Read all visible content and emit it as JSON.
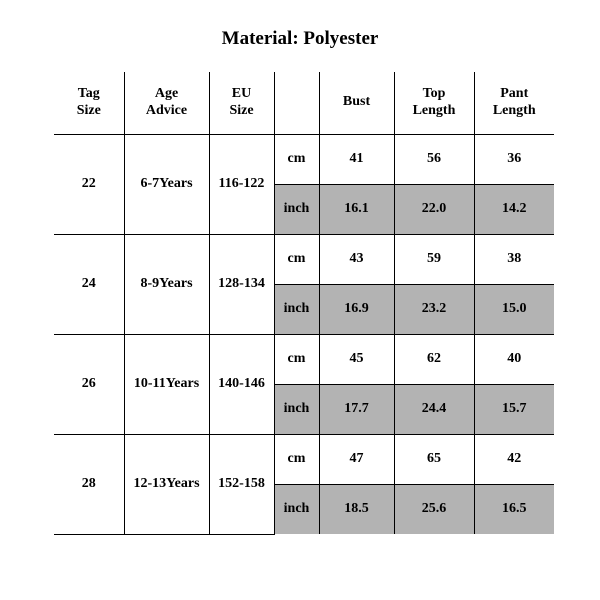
{
  "title": "Material: Polyester",
  "columns": [
    "Tag Size",
    "Age Advice",
    "EU Size",
    "",
    "Bust",
    "Top Length",
    "Pant Length"
  ],
  "col_widths_pct": [
    14,
    17,
    13,
    9,
    15,
    16,
    16
  ],
  "unit_labels": {
    "cm": "cm",
    "inch": "inch"
  },
  "shaded_bg": "#b3b3b3",
  "border_color": "#000000",
  "background_color": "#ffffff",
  "header_fontsize": 14,
  "cell_fontsize": 14,
  "title_fontsize": 19,
  "size_rows": [
    {
      "tag": "22",
      "age": "6-7Years",
      "eu": "116-122",
      "cm": {
        "bust": "41",
        "top": "56",
        "pant": "36"
      },
      "inch": {
        "bust": "16.1",
        "top": "22.0",
        "pant": "14.2"
      }
    },
    {
      "tag": "24",
      "age": "8-9Years",
      "eu": "128-134",
      "cm": {
        "bust": "43",
        "top": "59",
        "pant": "38"
      },
      "inch": {
        "bust": "16.9",
        "top": "23.2",
        "pant": "15.0"
      }
    },
    {
      "tag": "26",
      "age": "10-11Years",
      "eu": "140-146",
      "cm": {
        "bust": "45",
        "top": "62",
        "pant": "40"
      },
      "inch": {
        "bust": "17.7",
        "top": "24.4",
        "pant": "15.7"
      }
    },
    {
      "tag": "28",
      "age": "12-13Years",
      "eu": "152-158",
      "cm": {
        "bust": "47",
        "top": "65",
        "pant": "42"
      },
      "inch": {
        "bust": "18.5",
        "top": "25.6",
        "pant": "16.5"
      }
    }
  ]
}
